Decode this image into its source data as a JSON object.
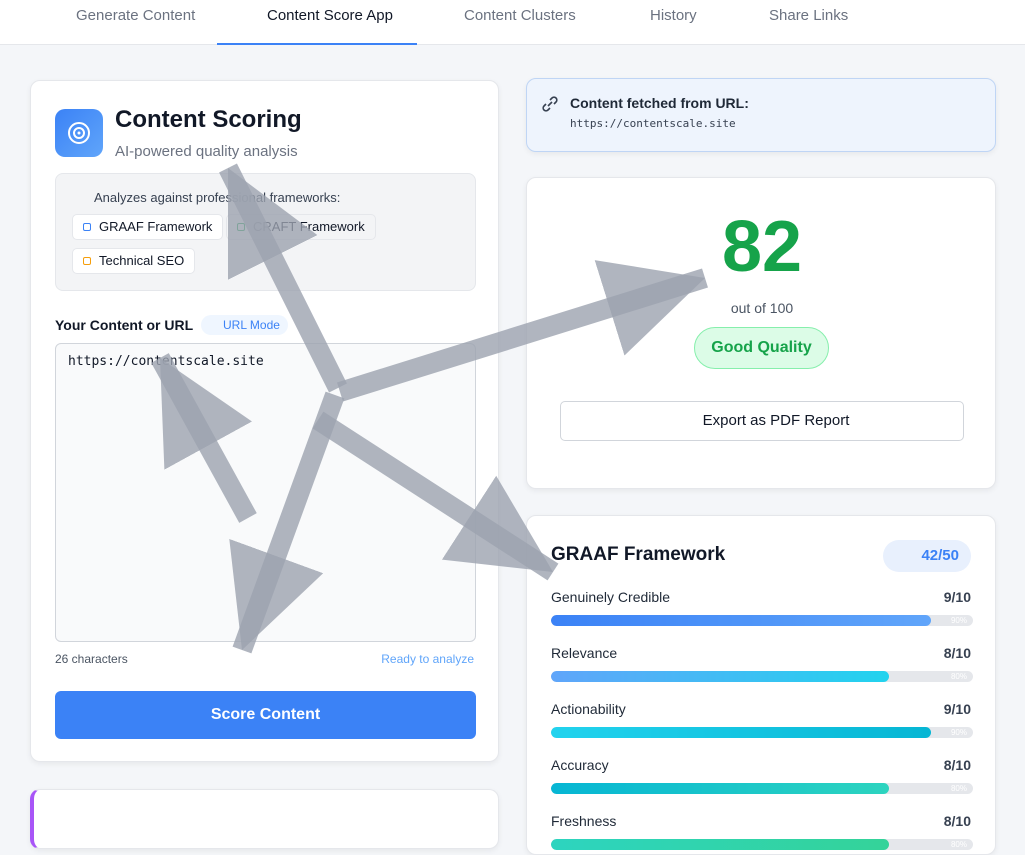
{
  "nav": {
    "tabs": [
      "Generate Content",
      "Content Score App",
      "Content Clusters",
      "History",
      "Share Links"
    ],
    "active": 1
  },
  "scoring_card": {
    "title": "Content Scoring",
    "subtitle": "AI-powered quality analysis",
    "frameworks_intro": "Analyzes against professional frameworks:",
    "frameworks": [
      "GRAAF Framework",
      "CRAFT Framework",
      "Technical SEO"
    ],
    "input_label": "Your Content or URL",
    "mode_badge": "URL Mode",
    "input_value": "https://contentscale.site",
    "char_count": "26 characters",
    "status": "Ready to analyze",
    "button": "Score Content"
  },
  "fetched": {
    "label": "Content fetched from URL:",
    "url": "https://contentscale.site"
  },
  "score": {
    "value": 82,
    "out_of": "out of 100",
    "quality": "Good Quality",
    "export": "Export as PDF Report"
  },
  "graaf": {
    "title": "GRAAF Framework",
    "total": "42/50",
    "items": [
      {
        "name": "Genuinely Credible",
        "score": "9/10",
        "percent": 90,
        "percent_label": "90%"
      },
      {
        "name": "Relevance",
        "score": "8/10",
        "percent": 80,
        "percent_label": "80%"
      },
      {
        "name": "Actionability",
        "score": "9/10",
        "percent": 90,
        "percent_label": "90%"
      },
      {
        "name": "Accuracy",
        "score": "8/10",
        "percent": 80,
        "percent_label": "80%"
      },
      {
        "name": "Freshness",
        "score": "8/10",
        "percent": 80,
        "percent_label": "80%"
      }
    ]
  }
}
